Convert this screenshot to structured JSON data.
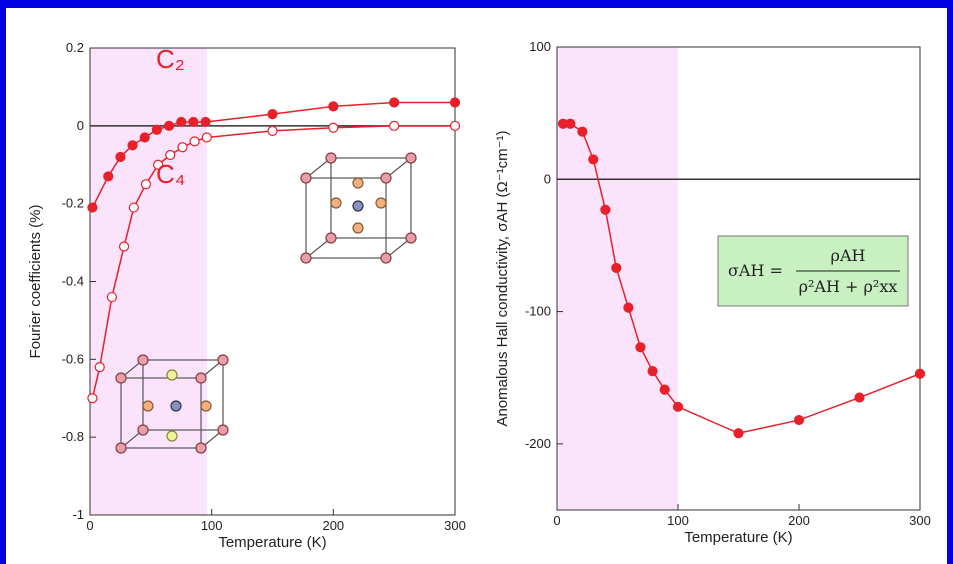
{
  "chart_data": [
    {
      "type": "line",
      "xlabel": "Temperature (K)",
      "ylabel": "Fourier coefficients (%)",
      "xlim": [
        0,
        300
      ],
      "xticks": [
        0,
        100,
        200,
        300
      ],
      "ylim": [
        -1,
        0.2
      ],
      "yticks": [
        0.2,
        0,
        -0.2,
        -0.4,
        -0.6,
        -0.8,
        -1
      ],
      "highlight": [
        0,
        96
      ],
      "highlight_color": "#fbe3fb",
      "zero_line": true,
      "series": [
        {
          "name": "C₂",
          "color": "#e8202a",
          "marker_fill": "#e8202a",
          "x": [
            2,
            15,
            25,
            35,
            45,
            55,
            65,
            75,
            85,
            95,
            150,
            200,
            250,
            300
          ],
          "values": [
            -0.21,
            -0.13,
            -0.08,
            -0.05,
            -0.03,
            -0.01,
            0,
            0.01,
            0.01,
            0.01,
            0.03,
            0.05,
            0.06,
            0.06
          ]
        },
        {
          "name": "C₄",
          "color": "#e8202a",
          "marker_fill": "#ffffff",
          "x": [
            2,
            8,
            18,
            28,
            36,
            46,
            56,
            66,
            76,
            86,
            96,
            150,
            200,
            250,
            300
          ],
          "values": [
            -0.7,
            -0.62,
            -0.44,
            -0.31,
            -0.21,
            -0.15,
            -0.1,
            -0.075,
            -0.055,
            -0.04,
            -0.03,
            -0.013,
            -0.005,
            0,
            0
          ]
        }
      ]
    },
    {
      "type": "line",
      "xlabel": "Temperature (K)",
      "ylabel": "Anomalous Hall conductivity, σAH (Ω⁻¹cm⁻¹)",
      "xlim": [
        0,
        300
      ],
      "xticks": [
        0,
        100,
        200,
        300
      ],
      "ylim": [
        -250,
        100
      ],
      "yticks": [
        100,
        0,
        -100,
        -200
      ],
      "highlight": [
        0,
        100
      ],
      "highlight_color": "#fbe3fb",
      "zero_line": true,
      "formula": {
        "lhs": "σAH =",
        "numerator": "ρAH",
        "denominator": "ρ²AH + ρ²xx"
      },
      "series": [
        {
          "color": "#e8202a",
          "marker_fill": "#e8202a",
          "x": [
            5,
            11,
            21,
            30,
            40,
            49,
            59,
            69,
            79,
            89,
            100,
            150,
            200,
            250,
            300
          ],
          "values": [
            42,
            42,
            36,
            15,
            -23,
            -67,
            -97,
            -127,
            -145,
            -159,
            -172,
            -192,
            -182,
            -165,
            -147
          ]
        }
      ]
    }
  ]
}
